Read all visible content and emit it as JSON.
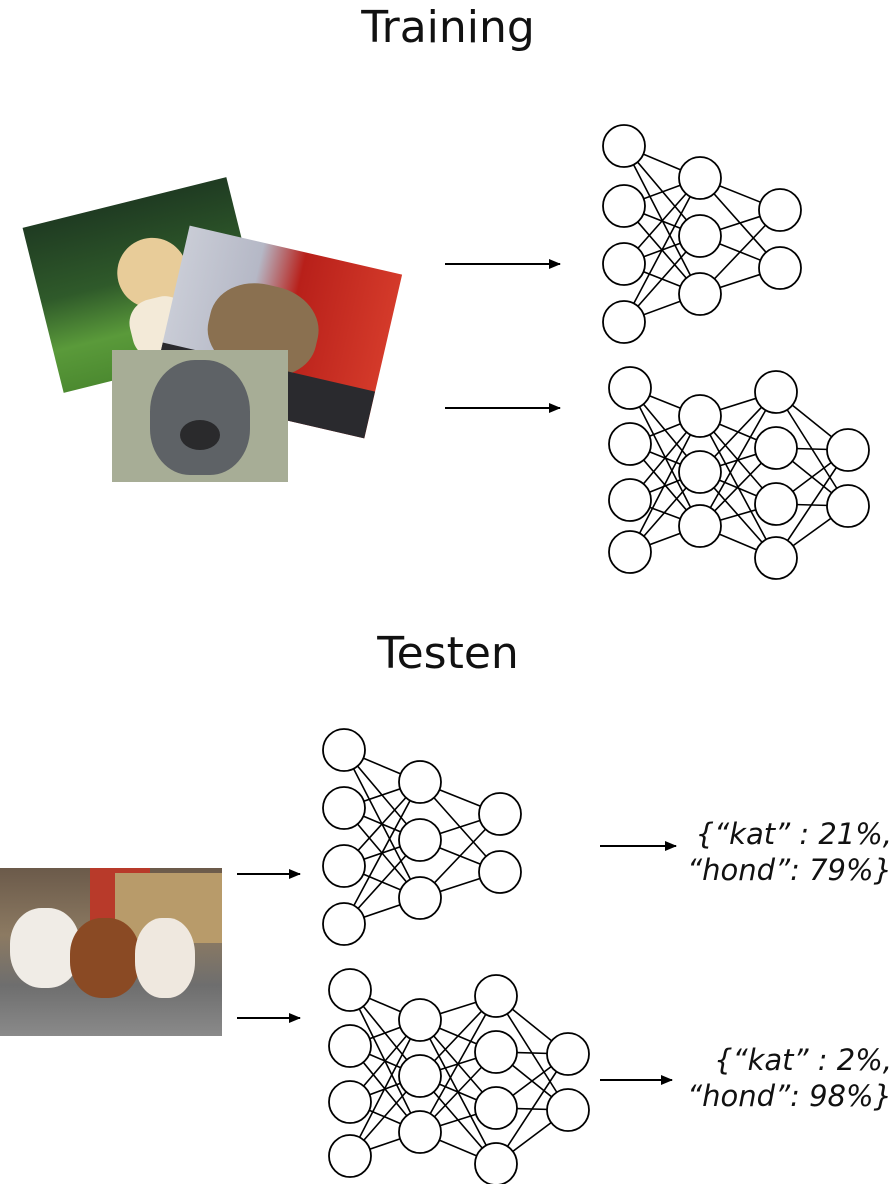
{
  "training": {
    "title": "Training",
    "images": [
      "dog-photo",
      "cat-photo",
      "grey-dog-photo"
    ],
    "networks": [
      {
        "layers": [
          4,
          3,
          2
        ]
      },
      {
        "layers": [
          4,
          3,
          4,
          2
        ]
      }
    ]
  },
  "testing": {
    "title": "Testen",
    "image": "puppies-photo",
    "networks": [
      {
        "layers": [
          4,
          3,
          2
        ]
      },
      {
        "layers": [
          4,
          3,
          4,
          2
        ]
      }
    ],
    "outputs": [
      {
        "line1": "{“kat” : 21%,",
        "line2": "“hond”: 79%}"
      },
      {
        "line1": "{“kat” : 2%,",
        "line2": "“hond”: 98%}"
      }
    ]
  }
}
